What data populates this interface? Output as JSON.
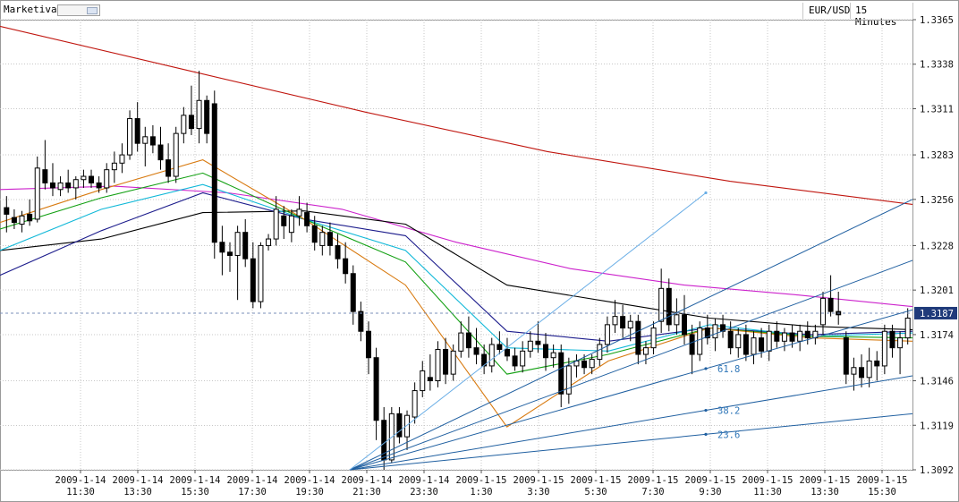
{
  "app": {
    "brand": "Marketiva",
    "symbol": "EUR/USD",
    "timeframe": "15 Minutes"
  },
  "colors": {
    "bull": "#ffffff",
    "bear": "#000000",
    "grid": "#c7c7c7",
    "ma_red": "#c0160f",
    "ma_magenta": "#cc22cc",
    "ma_black": "#000000",
    "ma_navy": "#1c1c8c",
    "ma_cyan": "#10b8d8",
    "ma_green": "#12a012",
    "ma_orange": "#d87a10",
    "fan": "#1f5fa0",
    "fan_light": "#6aaee6"
  },
  "chart_data": {
    "type": "candlestick",
    "y_ticks": [
      "1.3365",
      "1.3338",
      "1.3311",
      "1.3283",
      "1.3256",
      "1.3228",
      "1.3201",
      "1.3174",
      "1.3146",
      "1.3119",
      "1.3092"
    ],
    "ylim": [
      1.3092,
      1.3365
    ],
    "current_price": "1.3187",
    "x_ticks": [
      {
        "d": "2009-1-14",
        "t": "11:30"
      },
      {
        "d": "2009-1-14",
        "t": "13:30"
      },
      {
        "d": "2009-1-14",
        "t": "15:30"
      },
      {
        "d": "2009-1-14",
        "t": "17:30"
      },
      {
        "d": "2009-1-14",
        "t": "19:30"
      },
      {
        "d": "2009-1-14",
        "t": "21:30"
      },
      {
        "d": "2009-1-14",
        "t": "23:30"
      },
      {
        "d": "2009-1-15",
        "t": "1:30"
      },
      {
        "d": "2009-1-15",
        "t": "3:30"
      },
      {
        "d": "2009-1-15",
        "t": "5:30"
      },
      {
        "d": "2009-1-15",
        "t": "7:30"
      },
      {
        "d": "2009-1-15",
        "t": "9:30"
      },
      {
        "d": "2009-1-15",
        "t": "11:30"
      },
      {
        "d": "2009-1-15",
        "t": "13:30"
      },
      {
        "d": "2009-1-15",
        "t": "15:30"
      }
    ],
    "candles": [
      [
        1.3251,
        1.3258,
        1.3236,
        1.3247
      ],
      [
        1.3245,
        1.325,
        1.3238,
        1.3242
      ],
      [
        1.3241,
        1.3249,
        1.3236,
        1.3246
      ],
      [
        1.3247,
        1.3256,
        1.324,
        1.3243
      ],
      [
        1.3244,
        1.3282,
        1.3242,
        1.3275
      ],
      [
        1.3274,
        1.3292,
        1.3262,
        1.3266
      ],
      [
        1.3266,
        1.3278,
        1.3258,
        1.3263
      ],
      [
        1.3262,
        1.327,
        1.3258,
        1.3266
      ],
      [
        1.3266,
        1.3274,
        1.326,
        1.3263
      ],
      [
        1.3263,
        1.327,
        1.3256,
        1.3268
      ],
      [
        1.3268,
        1.3274,
        1.3263,
        1.327
      ],
      [
        1.327,
        1.3274,
        1.3263,
        1.3266
      ],
      [
        1.3266,
        1.327,
        1.326,
        1.3263
      ],
      [
        1.3263,
        1.3278,
        1.326,
        1.3274
      ],
      [
        1.3274,
        1.3285,
        1.3266,
        1.3278
      ],
      [
        1.3278,
        1.329,
        1.3272,
        1.3283
      ],
      [
        1.3283,
        1.331,
        1.328,
        1.3305
      ],
      [
        1.3305,
        1.3315,
        1.3285,
        1.329
      ],
      [
        1.329,
        1.33,
        1.3276,
        1.3294
      ],
      [
        1.3294,
        1.3301,
        1.3284,
        1.3289
      ],
      [
        1.3289,
        1.33,
        1.3274,
        1.328
      ],
      [
        1.328,
        1.329,
        1.3266,
        1.327
      ],
      [
        1.327,
        1.33,
        1.3266,
        1.3296
      ],
      [
        1.3296,
        1.3312,
        1.329,
        1.3307
      ],
      [
        1.3307,
        1.3325,
        1.3295,
        1.3299
      ],
      [
        1.3299,
        1.3334,
        1.329,
        1.3316
      ],
      [
        1.3316,
        1.3319,
        1.329,
        1.3296
      ],
      [
        1.3314,
        1.3322,
        1.322,
        1.323
      ],
      [
        1.323,
        1.324,
        1.321,
        1.3224
      ],
      [
        1.3224,
        1.323,
        1.3212,
        1.3222
      ],
      [
        1.3222,
        1.324,
        1.3195,
        1.3236
      ],
      [
        1.3236,
        1.3244,
        1.3215,
        1.322
      ],
      [
        1.322,
        1.323,
        1.319,
        1.3194
      ],
      [
        1.3194,
        1.323,
        1.319,
        1.3228
      ],
      [
        1.3228,
        1.3235,
        1.3225,
        1.3232
      ],
      [
        1.3232,
        1.3258,
        1.3228,
        1.325
      ],
      [
        1.3246,
        1.3252,
        1.3232,
        1.324
      ],
      [
        1.3236,
        1.325,
        1.323,
        1.3246
      ],
      [
        1.3246,
        1.3258,
        1.324,
        1.325
      ],
      [
        1.3248,
        1.3254,
        1.3236,
        1.324
      ],
      [
        1.324,
        1.3246,
        1.3225,
        1.323
      ],
      [
        1.3228,
        1.324,
        1.3222,
        1.3236
      ],
      [
        1.3236,
        1.3242,
        1.3222,
        1.3228
      ],
      [
        1.3228,
        1.3235,
        1.3214,
        1.322
      ],
      [
        1.322,
        1.323,
        1.3205,
        1.3211
      ],
      [
        1.3211,
        1.3216,
        1.318,
        1.3188
      ],
      [
        1.3188,
        1.3194,
        1.317,
        1.3176
      ],
      [
        1.3176,
        1.3182,
        1.315,
        1.316
      ],
      [
        1.316,
        1.3166,
        1.311,
        1.3122
      ],
      [
        1.3122,
        1.313,
        1.3092,
        1.3098
      ],
      [
        1.3098,
        1.313,
        1.3096,
        1.3126
      ],
      [
        1.3126,
        1.313,
        1.3108,
        1.3112
      ],
      [
        1.3112,
        1.3128,
        1.3104,
        1.3125
      ],
      [
        1.3124,
        1.3145,
        1.312,
        1.314
      ],
      [
        1.314,
        1.3158,
        1.3136,
        1.3152
      ],
      [
        1.3148,
        1.3162,
        1.314,
        1.3146
      ],
      [
        1.3146,
        1.317,
        1.3142,
        1.3165
      ],
      [
        1.3165,
        1.3172,
        1.3144,
        1.315
      ],
      [
        1.315,
        1.3168,
        1.3146,
        1.3164
      ],
      [
        1.3164,
        1.3182,
        1.316,
        1.3175
      ],
      [
        1.3175,
        1.3185,
        1.316,
        1.3166
      ],
      [
        1.3166,
        1.3178,
        1.3156,
        1.3162
      ],
      [
        1.3162,
        1.3168,
        1.315,
        1.3155
      ],
      [
        1.3155,
        1.3172,
        1.3151,
        1.3168
      ],
      [
        1.3168,
        1.3176,
        1.3162,
        1.3165
      ],
      [
        1.3165,
        1.3172,
        1.3158,
        1.3161
      ],
      [
        1.3161,
        1.3166,
        1.3152,
        1.3155
      ],
      [
        1.3155,
        1.317,
        1.3151,
        1.3164
      ],
      [
        1.3164,
        1.3176,
        1.316,
        1.317
      ],
      [
        1.317,
        1.3182,
        1.3163,
        1.3168
      ],
      [
        1.3168,
        1.3175,
        1.3152,
        1.316
      ],
      [
        1.316,
        1.3168,
        1.3154,
        1.3163
      ],
      [
        1.3163,
        1.3168,
        1.313,
        1.3138
      ],
      [
        1.3138,
        1.316,
        1.3132,
        1.3155
      ],
      [
        1.3155,
        1.3162,
        1.3148,
        1.3158
      ],
      [
        1.3158,
        1.3162,
        1.315,
        1.3154
      ],
      [
        1.3154,
        1.3162,
        1.315,
        1.3159
      ],
      [
        1.3159,
        1.3172,
        1.3155,
        1.3168
      ],
      [
        1.3168,
        1.3185,
        1.3163,
        1.318
      ],
      [
        1.318,
        1.3195,
        1.3175,
        1.3185
      ],
      [
        1.3185,
        1.3192,
        1.3172,
        1.3178
      ],
      [
        1.3178,
        1.3186,
        1.317,
        1.3182
      ],
      [
        1.3182,
        1.3186,
        1.3156,
        1.3162
      ],
      [
        1.3162,
        1.317,
        1.3156,
        1.3166
      ],
      [
        1.3166,
        1.3182,
        1.3162,
        1.3178
      ],
      [
        1.3182,
        1.3214,
        1.3175,
        1.3202
      ],
      [
        1.3202,
        1.3208,
        1.3176,
        1.318
      ],
      [
        1.318,
        1.3196,
        1.3174,
        1.3186
      ],
      [
        1.3186,
        1.3198,
        1.3168,
        1.3174
      ],
      [
        1.3174,
        1.318,
        1.315,
        1.3162
      ],
      [
        1.3162,
        1.3182,
        1.3158,
        1.3178
      ],
      [
        1.3178,
        1.3186,
        1.3168,
        1.3172
      ],
      [
        1.3172,
        1.3184,
        1.3164,
        1.318
      ],
      [
        1.318,
        1.3186,
        1.3172,
        1.3176
      ],
      [
        1.3176,
        1.3182,
        1.3162,
        1.3166
      ],
      [
        1.3166,
        1.3178,
        1.316,
        1.3174
      ],
      [
        1.3174,
        1.318,
        1.3158,
        1.3162
      ],
      [
        1.3162,
        1.3176,
        1.3156,
        1.3172
      ],
      [
        1.3172,
        1.3178,
        1.316,
        1.3164
      ],
      [
        1.3164,
        1.318,
        1.3158,
        1.3176
      ],
      [
        1.3176,
        1.3182,
        1.3166,
        1.317
      ],
      [
        1.317,
        1.3178,
        1.3164,
        1.3175
      ],
      [
        1.3175,
        1.318,
        1.3166,
        1.317
      ],
      [
        1.317,
        1.318,
        1.3164,
        1.3176
      ],
      [
        1.3176,
        1.3182,
        1.3168,
        1.3172
      ],
      [
        1.3172,
        1.318,
        1.3168,
        1.3176
      ],
      [
        1.318,
        1.32,
        1.3174,
        1.3196
      ],
      [
        1.3196,
        1.321,
        1.3185,
        1.3188
      ],
      [
        1.3188,
        1.32,
        1.318,
        1.3186
      ],
      [
        1.3172,
        1.3176,
        1.3144,
        1.315
      ],
      [
        1.315,
        1.316,
        1.314,
        1.3154
      ],
      [
        1.3154,
        1.3162,
        1.3142,
        1.3148
      ],
      [
        1.3148,
        1.3166,
        1.3142,
        1.3158
      ],
      [
        1.3158,
        1.3164,
        1.3146,
        1.3155
      ],
      [
        1.3155,
        1.318,
        1.315,
        1.3176
      ],
      [
        1.3176,
        1.318,
        1.316,
        1.3166
      ],
      [
        1.3166,
        1.3176,
        1.315,
        1.3172
      ],
      [
        1.3172,
        1.319,
        1.3168,
        1.3184
      ]
    ],
    "moving_averages": [
      {
        "color": "#c0160f",
        "y": [
          1.3361,
          1.3335,
          1.3309,
          1.3285,
          1.3267,
          1.3253
        ]
      },
      {
        "color": "#cc22cc",
        "y": [
          1.3262,
          1.3264,
          1.326,
          1.325,
          1.323,
          1.3214,
          1.3204,
          1.3198,
          1.3191
        ]
      },
      {
        "color": "#000000",
        "y": [
          1.3225,
          1.3232,
          1.3248,
          1.3249,
          1.3241,
          1.3204,
          1.3194,
          1.3184,
          1.3179,
          1.3177
        ]
      },
      {
        "color": "#1c1c8c",
        "y": [
          1.321,
          1.3237,
          1.326,
          1.3244,
          1.3234,
          1.3176,
          1.317,
          1.3178,
          1.3174,
          1.3176
        ]
      },
      {
        "color": "#10b8d8",
        "y": [
          1.3225,
          1.325,
          1.3265,
          1.3244,
          1.3225,
          1.3166,
          1.3164,
          1.318,
          1.3173,
          1.3175
        ]
      },
      {
        "color": "#12a012",
        "y": [
          1.3238,
          1.3257,
          1.3272,
          1.3244,
          1.3218,
          1.315,
          1.3162,
          1.3178,
          1.3173,
          1.3172
        ]
      },
      {
        "color": "#d87a10",
        "y": [
          1.3242,
          1.3262,
          1.328,
          1.3244,
          1.3204,
          1.3118,
          1.3158,
          1.3178,
          1.3172,
          1.317
        ]
      }
    ],
    "fan": {
      "origin": 1.3092,
      "lines": [
        {
          "label": "",
          "y_end": 1.3256,
          "light": false
        },
        {
          "label": "",
          "y_end": 1.3219,
          "light": false
        },
        {
          "label": "61.8",
          "y_end": 1.3189,
          "light": false
        },
        {
          "label": "38.2",
          "y_end": 1.3149,
          "light": false
        },
        {
          "label": "23.6",
          "y_end": 1.3126,
          "light": false
        },
        {
          "label": "",
          "y_end": 1.326,
          "light": true
        }
      ]
    }
  }
}
